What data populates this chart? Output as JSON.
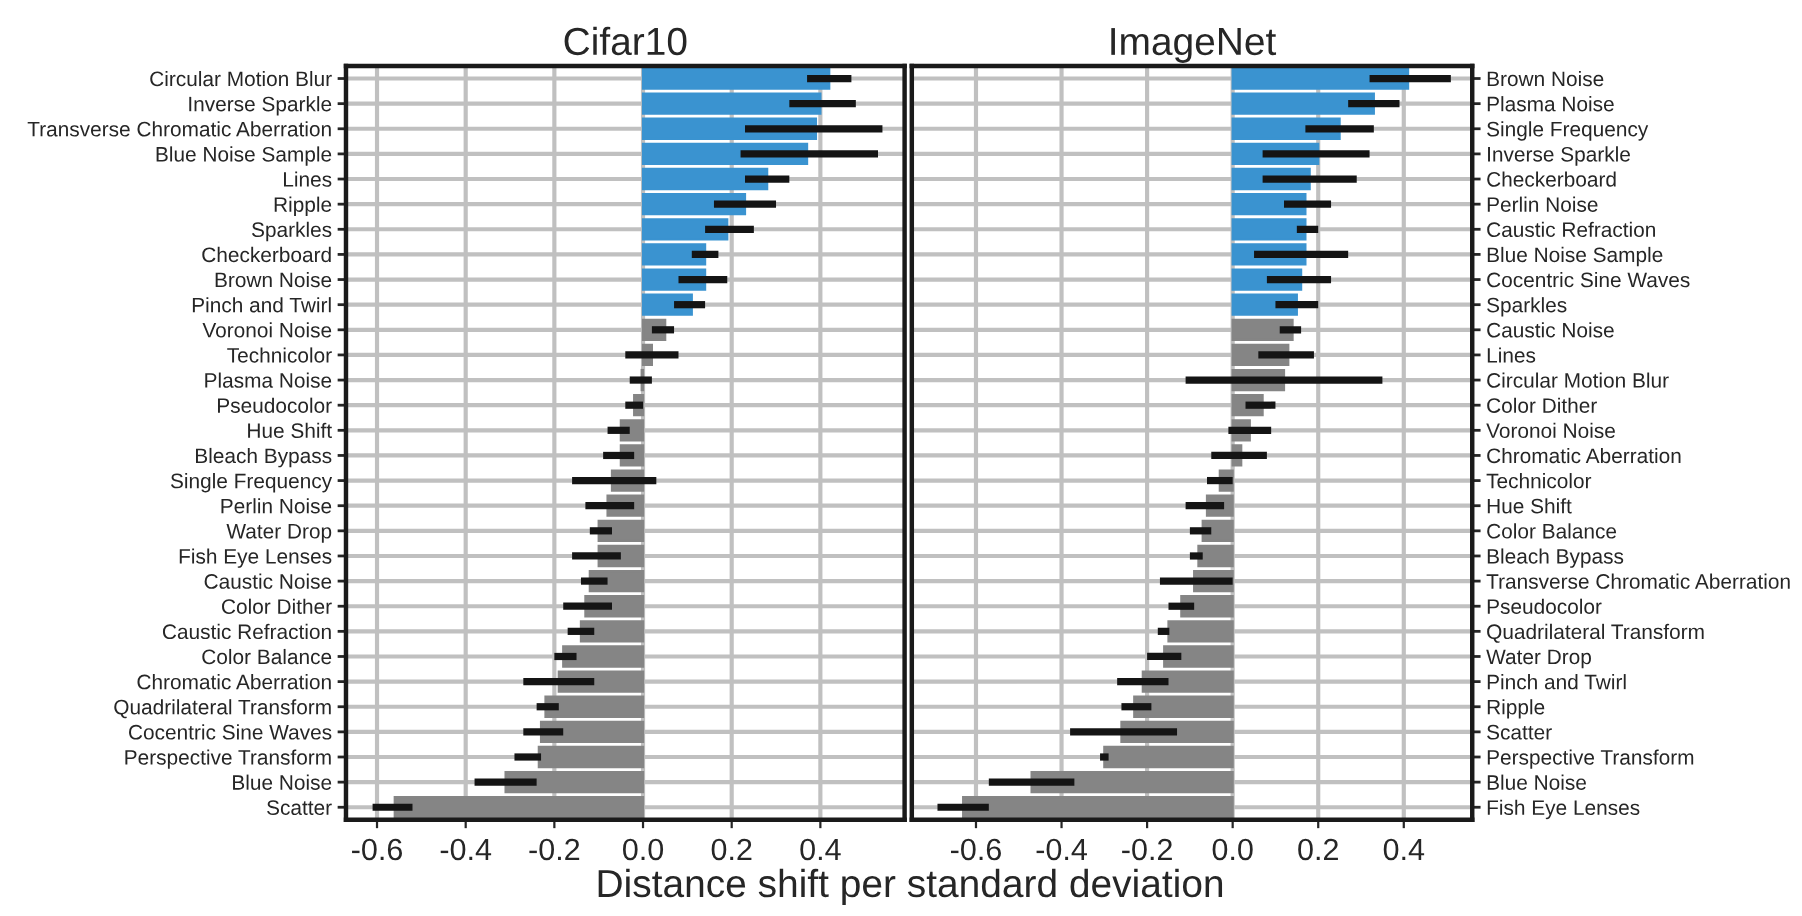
{
  "chart_data": [
    {
      "type": "bar",
      "orientation": "horizontal",
      "title": "Cifar10",
      "xlabel": "Distance shift per standard deviation",
      "grid": true,
      "legend": false,
      "categories": [
        "Circular Motion Blur",
        "Inverse Sparkle",
        "Transverse Chromatic Aberration",
        "Blue Noise Sample",
        "Lines",
        "Ripple",
        "Sparkles",
        "Checkerboard",
        "Brown Noise",
        "Pinch and Twirl",
        "Voronoi Noise",
        "Technicolor",
        "Plasma Noise",
        "Pseudocolor",
        "Hue Shift",
        "Bleach Bypass",
        "Single Frequency",
        "Perlin Noise",
        "Water Drop",
        "Fish Eye Lenses",
        "Caustic Noise",
        "Color Dither",
        "Caustic Refraction",
        "Color Balance",
        "Chromatic Aberration",
        "Quadrilateral Transform",
        "Cocentric Sine Waves",
        "Perspective Transform",
        "Blue Noise",
        "Scatter"
      ],
      "values": [
        0.42,
        0.4,
        0.39,
        0.37,
        0.28,
        0.23,
        0.19,
        0.14,
        0.14,
        0.11,
        0.05,
        0.02,
        -0.003,
        -0.02,
        -0.05,
        -0.05,
        -0.07,
        -0.08,
        -0.1,
        -0.1,
        -0.12,
        -0.13,
        -0.14,
        -0.18,
        -0.19,
        -0.22,
        -0.23,
        -0.235,
        -0.31,
        -0.56
      ],
      "errors": [
        [
          0.37,
          0.47
        ],
        [
          0.33,
          0.48
        ],
        [
          0.23,
          0.54
        ],
        [
          0.22,
          0.53
        ],
        [
          0.23,
          0.33
        ],
        [
          0.16,
          0.3
        ],
        [
          0.14,
          0.25
        ],
        [
          0.11,
          0.17
        ],
        [
          0.08,
          0.19
        ],
        [
          0.07,
          0.14
        ],
        [
          0.02,
          0.07
        ],
        [
          -0.04,
          0.08
        ],
        [
          -0.03,
          0.02
        ],
        [
          -0.04,
          0.0
        ],
        [
          -0.08,
          -0.03
        ],
        [
          -0.09,
          -0.02
        ],
        [
          -0.16,
          0.03
        ],
        [
          -0.13,
          -0.02
        ],
        [
          -0.12,
          -0.07
        ],
        [
          -0.16,
          -0.05
        ],
        [
          -0.14,
          -0.08
        ],
        [
          -0.18,
          -0.07
        ],
        [
          -0.17,
          -0.11
        ],
        [
          -0.2,
          -0.15
        ],
        [
          -0.27,
          -0.11
        ],
        [
          -0.24,
          -0.19
        ],
        [
          -0.27,
          -0.18
        ],
        [
          -0.29,
          -0.23
        ],
        [
          -0.38,
          -0.24
        ],
        [
          -0.61,
          -0.52
        ]
      ],
      "colors": [
        "#3a93d0",
        "#3a93d0",
        "#3a93d0",
        "#3a93d0",
        "#3a93d0",
        "#3a93d0",
        "#3a93d0",
        "#3a93d0",
        "#3a93d0",
        "#3a93d0",
        "#858585",
        "#858585",
        "#858585",
        "#858585",
        "#858585",
        "#858585",
        "#858585",
        "#858585",
        "#858585",
        "#858585",
        "#858585",
        "#858585",
        "#858585",
        "#858585",
        "#858585",
        "#858585",
        "#858585",
        "#858585",
        "#858585",
        "#858585"
      ],
      "xlim": [
        -0.67,
        0.59
      ],
      "xticks": [
        {
          "value": -0.6,
          "label": "-0.6"
        },
        {
          "value": -0.4,
          "label": "-0.4"
        },
        {
          "value": -0.2,
          "label": "-0.2"
        },
        {
          "value": 0,
          "label": "0.0"
        },
        {
          "value": 0.2,
          "label": "0.2"
        },
        {
          "value": 0.4,
          "label": "0.4"
        }
      ]
    },
    {
      "type": "bar",
      "orientation": "horizontal",
      "title": "ImageNet",
      "grid": true,
      "legend": false,
      "categories": [
        "Brown Noise",
        "Plasma Noise",
        "Single Frequency",
        "Inverse Sparkle",
        "Checkerboard",
        "Perlin Noise",
        "Caustic Refraction",
        "Blue Noise Sample",
        "Cocentric Sine Waves",
        "Sparkles",
        "Caustic Noise",
        "Lines",
        "Circular Motion Blur",
        "Color Dither",
        "Voronoi Noise",
        "Chromatic Aberration",
        "Technicolor",
        "Hue Shift",
        "Color Balance",
        "Bleach Bypass",
        "Transverse Chromatic Aberration",
        "Pseudocolor",
        "Quadrilateral Transform",
        "Water Drop",
        "Pinch and Twirl",
        "Ripple",
        "Scatter",
        "Perspective Transform",
        "Blue Noise",
        "Fish Eye Lenses"
      ],
      "values": [
        0.41,
        0.33,
        0.25,
        0.2,
        0.18,
        0.17,
        0.17,
        0.17,
        0.16,
        0.15,
        0.14,
        0.13,
        0.12,
        0.07,
        0.04,
        0.02,
        -0.03,
        -0.06,
        -0.07,
        -0.08,
        -0.09,
        -0.12,
        -0.15,
        -0.16,
        -0.21,
        -0.23,
        -0.26,
        -0.3,
        -0.47,
        -0.63
      ],
      "errors": [
        [
          0.32,
          0.51
        ],
        [
          0.27,
          0.39
        ],
        [
          0.17,
          0.33
        ],
        [
          0.07,
          0.32
        ],
        [
          0.07,
          0.29
        ],
        [
          0.12,
          0.23
        ],
        [
          0.15,
          0.2
        ],
        [
          0.05,
          0.27
        ],
        [
          0.08,
          0.23
        ],
        [
          0.1,
          0.2
        ],
        [
          0.11,
          0.16
        ],
        [
          0.06,
          0.19
        ],
        [
          -0.11,
          0.35
        ],
        [
          0.03,
          0.1
        ],
        [
          -0.01,
          0.09
        ],
        [
          -0.05,
          0.08
        ],
        [
          -0.06,
          0.0
        ],
        [
          -0.11,
          -0.02
        ],
        [
          -0.1,
          -0.05
        ],
        [
          -0.1,
          -0.07
        ],
        [
          -0.17,
          0.0
        ],
        [
          -0.15,
          -0.09
        ],
        [
          -0.175,
          -0.148
        ],
        [
          -0.2,
          -0.12
        ],
        [
          -0.27,
          -0.15
        ],
        [
          -0.26,
          -0.19
        ],
        [
          -0.38,
          -0.13
        ],
        [
          -0.31,
          -0.29
        ],
        [
          -0.57,
          -0.37
        ],
        [
          -0.69,
          -0.57
        ]
      ],
      "colors": [
        "#3a93d0",
        "#3a93d0",
        "#3a93d0",
        "#3a93d0",
        "#3a93d0",
        "#3a93d0",
        "#3a93d0",
        "#3a93d0",
        "#3a93d0",
        "#3a93d0",
        "#858585",
        "#858585",
        "#858585",
        "#858585",
        "#858585",
        "#858585",
        "#858585",
        "#858585",
        "#858585",
        "#858585",
        "#858585",
        "#858585",
        "#858585",
        "#858585",
        "#858585",
        "#858585",
        "#858585",
        "#858585",
        "#858585",
        "#858585"
      ],
      "xlim": [
        -0.75,
        0.56
      ],
      "xticks": [
        {
          "value": -0.6,
          "label": "-0.6"
        },
        {
          "value": -0.4,
          "label": "-0.4"
        },
        {
          "value": -0.2,
          "label": "-0.2"
        },
        {
          "value": 0,
          "label": "0.0"
        },
        {
          "value": 0.2,
          "label": "0.2"
        },
        {
          "value": 0.4,
          "label": "0.4"
        }
      ]
    }
  ]
}
